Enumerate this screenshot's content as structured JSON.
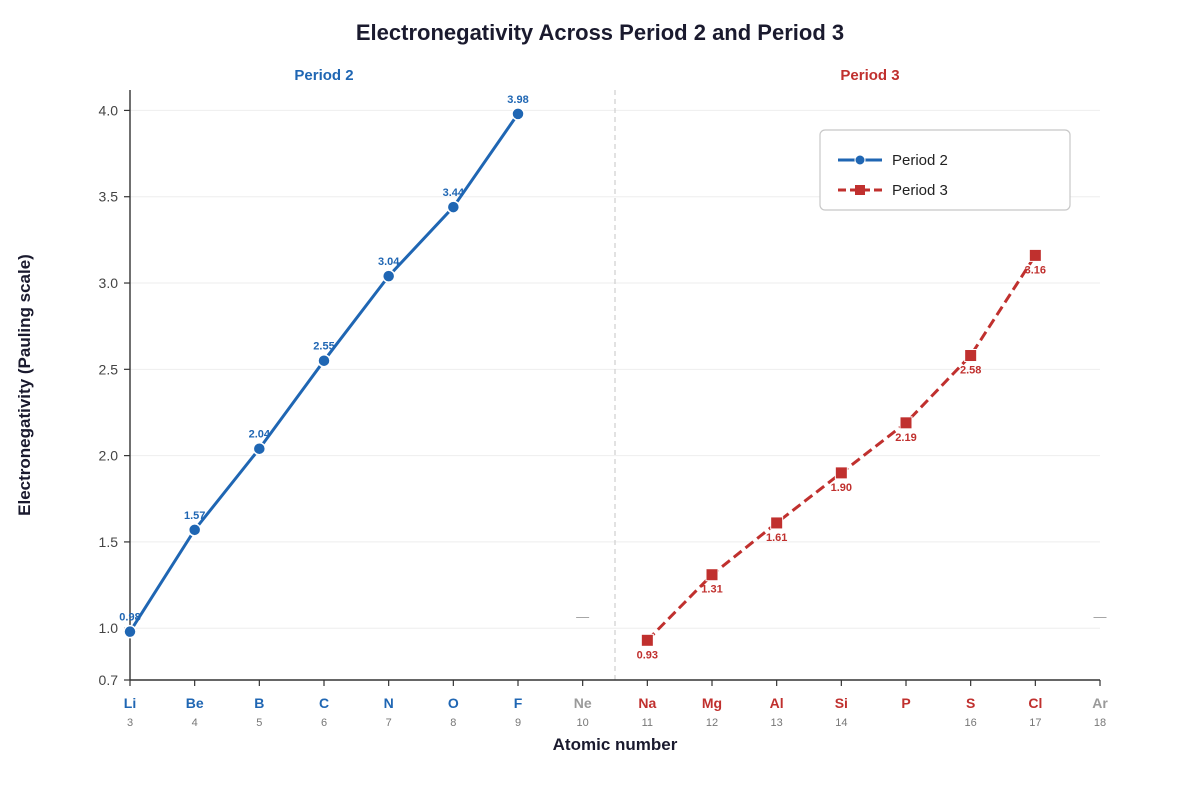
{
  "chart_data": {
    "type": "line",
    "title": "Electronegativity Across Period 2 and Period 3",
    "xlabel": "Atomic number",
    "ylabel": "Electronegativity (Pauling scale)",
    "ylim": [
      0.7,
      4.1
    ],
    "yticks": [
      "0.7",
      "1.0",
      "1.5",
      "2.0",
      "2.5",
      "3.0",
      "3.5",
      "4.0"
    ],
    "grid": "horizontal",
    "legend_position": "top-right",
    "panels": [
      {
        "label": "Period 2",
        "color": "#1f66b3"
      },
      {
        "label": "Period 3",
        "color": "#c0302e"
      }
    ],
    "categories": [
      {
        "symbol": "Li",
        "z": "3",
        "period": 1
      },
      {
        "symbol": "Be",
        "z": "4",
        "period": 1
      },
      {
        "symbol": "B",
        "z": "5",
        "period": 1
      },
      {
        "symbol": "C",
        "z": "6",
        "period": 1
      },
      {
        "symbol": "N",
        "z": "7",
        "period": 1
      },
      {
        "symbol": "O",
        "z": "8",
        "period": 1
      },
      {
        "symbol": "F",
        "z": "9",
        "period": 1
      },
      {
        "symbol": "Ne",
        "z": "10",
        "period": 0
      },
      {
        "symbol": "Na",
        "z": "11",
        "period": 2
      },
      {
        "symbol": "Mg",
        "z": "12",
        "period": 2
      },
      {
        "symbol": "Al",
        "z": "13",
        "period": 2
      },
      {
        "symbol": "Si",
        "z": "14",
        "period": 2
      },
      {
        "symbol": "P",
        "z": "",
        "period": 2
      },
      {
        "symbol": "S",
        "z": "16",
        "period": 2
      },
      {
        "symbol": "Cl",
        "z": "17",
        "period": 2
      },
      {
        "symbol": "Ar",
        "z": "18",
        "period": 0
      }
    ],
    "series": [
      {
        "name": "Period 2",
        "color": "#1f66b3",
        "marker": "circle",
        "line_style": "solid",
        "label_position": "above",
        "points": [
          {
            "x": 3,
            "y": 0.98,
            "label": "0.98"
          },
          {
            "x": 4,
            "y": 1.57,
            "label": "1.57"
          },
          {
            "x": 5,
            "y": 2.04,
            "label": "2.04"
          },
          {
            "x": 6,
            "y": 2.55,
            "label": "2.55"
          },
          {
            "x": 7,
            "y": 3.04,
            "label": "3.04"
          },
          {
            "x": 8,
            "y": 3.44,
            "label": "3.44"
          },
          {
            "x": 9,
            "y": 3.98,
            "label": "3.98"
          }
        ]
      },
      {
        "name": "Period 3",
        "color": "#c0302e",
        "marker": "square",
        "line_style": "dashed",
        "label_position": "below",
        "points": [
          {
            "x": 11,
            "y": 0.93,
            "label": "0.93"
          },
          {
            "x": 12,
            "y": 1.31,
            "label": "1.31"
          },
          {
            "x": 13,
            "y": 1.61,
            "label": "1.61"
          },
          {
            "x": 14,
            "y": 1.9,
            "label": "1.90"
          },
          {
            "x": 15,
            "y": 2.19,
            "label": "2.19"
          },
          {
            "x": 16,
            "y": 2.58,
            "label": "2.58"
          },
          {
            "x": 17,
            "y": 3.16,
            "label": "3.16"
          }
        ]
      }
    ],
    "noble_gas_markers": [
      "—",
      "—"
    ]
  }
}
